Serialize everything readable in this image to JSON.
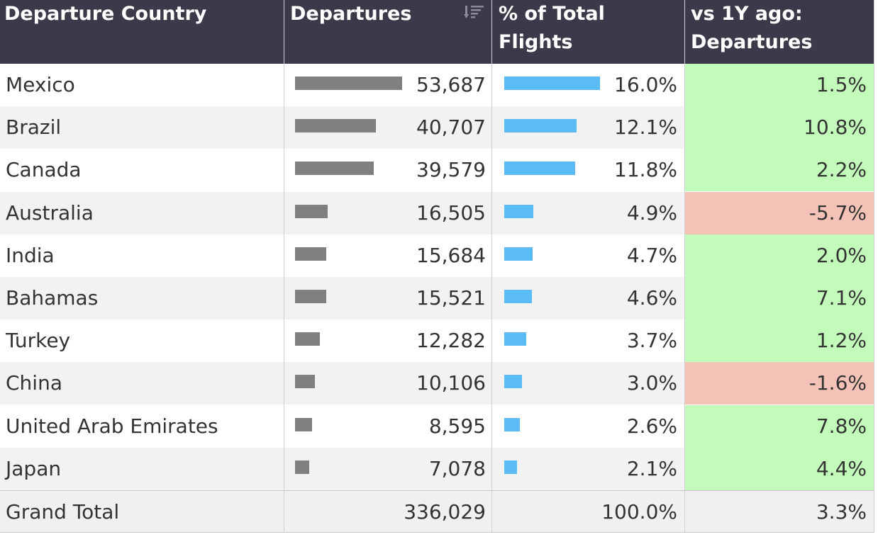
{
  "table": {
    "headers": {
      "country": "Departure Country",
      "departures": "Departures",
      "pct_line1": "% of Total",
      "pct_line2": "Flights",
      "yoy_line1": "vs 1Y ago:",
      "yoy_line2": "Departures"
    },
    "rows": [
      {
        "country": "Mexico",
        "departures": "53,687",
        "pct": "16.0%",
        "yoy": "1.5%"
      },
      {
        "country": "Brazil",
        "departures": "40,707",
        "pct": "12.1%",
        "yoy": "10.8%"
      },
      {
        "country": "Canada",
        "departures": "39,579",
        "pct": "11.8%",
        "yoy": "2.2%"
      },
      {
        "country": "Australia",
        "departures": "16,505",
        "pct": "4.9%",
        "yoy": "-5.7%"
      },
      {
        "country": "India",
        "departures": "15,684",
        "pct": "4.7%",
        "yoy": "2.0%"
      },
      {
        "country": "Bahamas",
        "departures": "15,521",
        "pct": "4.6%",
        "yoy": "7.1%"
      },
      {
        "country": "Turkey",
        "departures": "12,282",
        "pct": "3.7%",
        "yoy": "1.2%"
      },
      {
        "country": "China",
        "departures": "10,106",
        "pct": "3.0%",
        "yoy": "-1.6%"
      },
      {
        "country": "United Arab Emirates",
        "departures": "8,595",
        "pct": "2.6%",
        "yoy": "7.8%"
      },
      {
        "country": "Japan",
        "departures": "7,078",
        "pct": "2.1%",
        "yoy": "4.4%"
      }
    ],
    "total": {
      "label": "Grand Total",
      "departures": "336,029",
      "pct": "100.0%",
      "yoy": "3.3%"
    }
  },
  "colors": {
    "header_bg": "#3a3a4a",
    "departures_bar": "#808080",
    "pct_bar": "#5bbcf5",
    "positive_bg": "#c2fbba",
    "negative_bg": "#f4c2b6",
    "alt_row_bg": "#f2f2f2"
  },
  "chart_data": {
    "type": "table",
    "columns": [
      "Departure Country",
      "Departures",
      "% of Total Flights",
      "vs 1Y ago: Departures"
    ],
    "categories": [
      "Mexico",
      "Brazil",
      "Canada",
      "Australia",
      "India",
      "Bahamas",
      "Turkey",
      "China",
      "United Arab Emirates",
      "Japan"
    ],
    "series": [
      {
        "name": "Departures",
        "values": [
          53687,
          40707,
          39579,
          16505,
          15684,
          15521,
          12282,
          10106,
          8595,
          7078
        ]
      },
      {
        "name": "% of Total Flights",
        "values": [
          16.0,
          12.1,
          11.8,
          4.9,
          4.7,
          4.6,
          3.7,
          3.0,
          2.6,
          2.1
        ]
      },
      {
        "name": "vs 1Y ago: Departures",
        "values": [
          1.5,
          10.8,
          2.2,
          -5.7,
          2.0,
          7.1,
          1.2,
          -1.6,
          7.8,
          4.4
        ]
      }
    ],
    "totals": {
      "Departures": 336029,
      "% of Total Flights": 100.0,
      "vs 1Y ago: Departures": 3.3
    }
  }
}
